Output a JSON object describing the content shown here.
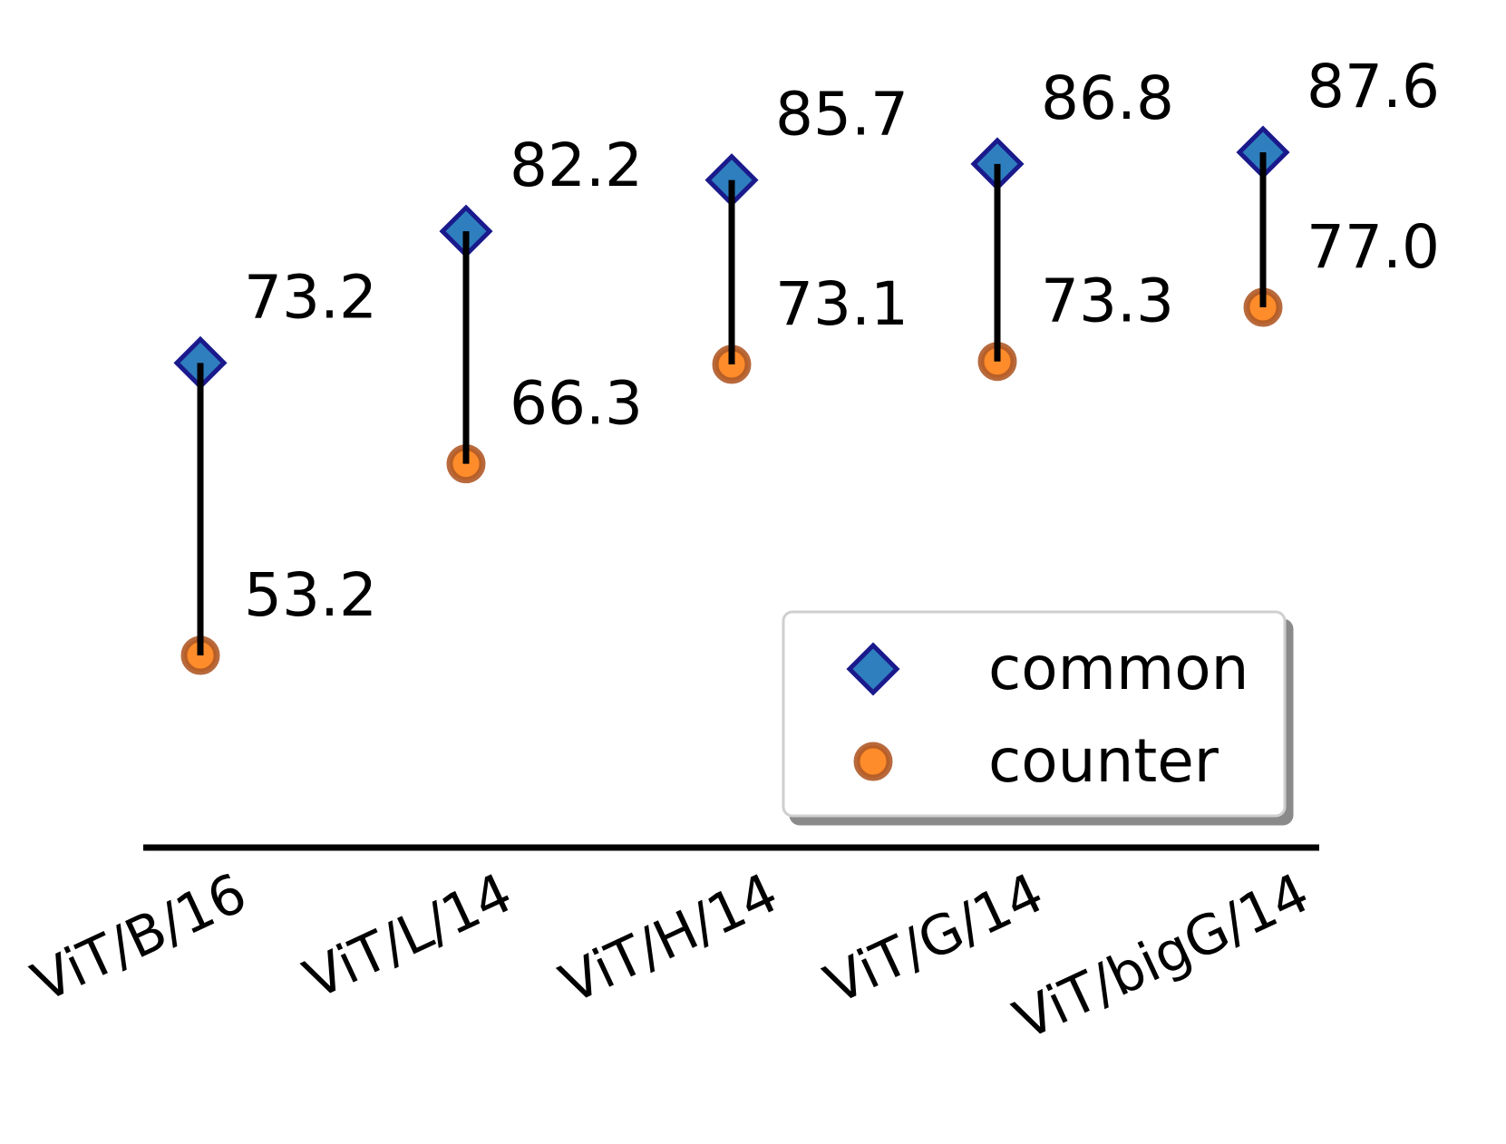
{
  "chart_data": {
    "type": "scatter",
    "categories": [
      "ViT/B/16",
      "ViT/L/14",
      "ViT/H/14",
      "ViT/G/14",
      "ViT/bigG/14"
    ],
    "series": [
      {
        "name": "common",
        "values": [
          73.2,
          82.2,
          85.7,
          86.8,
          87.6
        ],
        "color": "#2f7fbf",
        "edge_color": "#1a1a8c",
        "marker": "diamond"
      },
      {
        "name": "counter",
        "values": [
          53.2,
          66.3,
          73.1,
          73.3,
          77.0
        ],
        "color": "#ff8c2a",
        "edge_color": "#b05a28",
        "marker": "circle"
      }
    ],
    "connector_color": "#000000",
    "ylim": [
      41,
      91
    ],
    "grid": false,
    "legend": "bottom-right"
  }
}
